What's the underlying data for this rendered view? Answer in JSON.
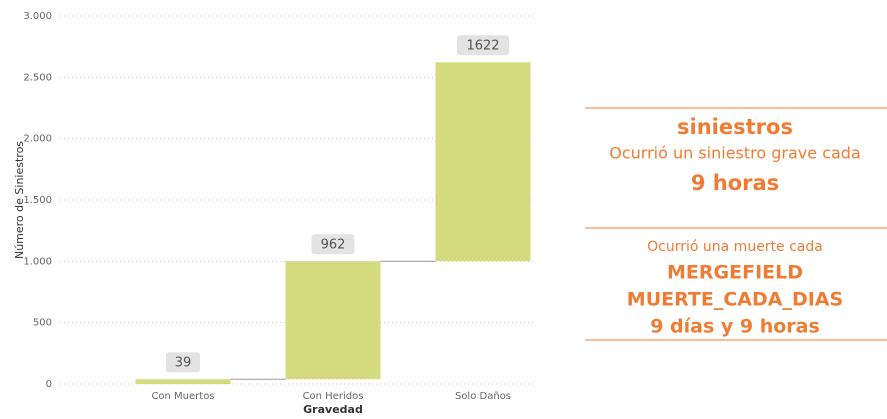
{
  "chart_data": {
    "type": "waterfall",
    "categories": [
      "Con Muertos",
      "Con Heridos",
      "Solo Daños"
    ],
    "values": [
      39,
      962,
      1622
    ],
    "color": "#d3db7e",
    "xlabel": "Gravedad",
    "ylabel": "Número de Siniestros",
    "ylim": [
      0,
      3000
    ],
    "yticks": [
      0,
      500,
      {
        "value": 1000,
        "label": "1.000"
      },
      {
        "value": 1500,
        "label": "1.500"
      },
      {
        "value": 2000,
        "label": "2.000"
      },
      {
        "value": 2500,
        "label": "2.500"
      },
      {
        "value": 3000,
        "label": "3.000"
      }
    ],
    "grid": true
  },
  "panel": {
    "title": "siniestros",
    "line1": "Ocurrió un siniestro grave cada",
    "value1": "9 horas",
    "line2": "Ocurrió una muerte cada",
    "field1": "MERGEFIELD",
    "field2": "MUERTE_CADA_DIAS",
    "value2": "9 días y 9 horas"
  }
}
